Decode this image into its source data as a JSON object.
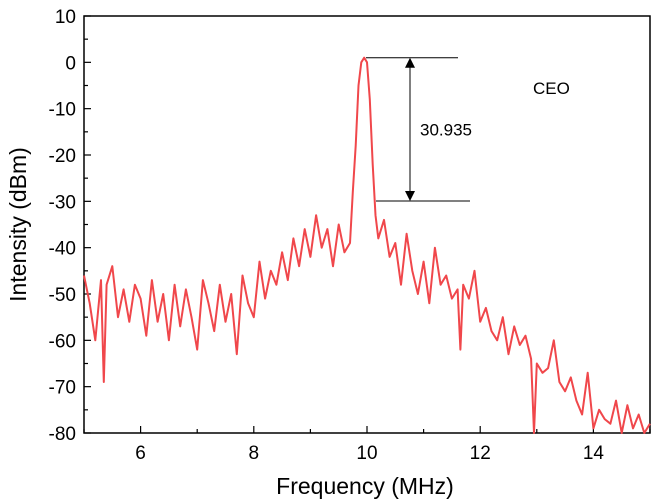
{
  "chart_data": {
    "type": "line",
    "xlabel": "Frequency (MHz)",
    "ylabel": "Intensity (dBm)",
    "xlim": [
      5,
      15
    ],
    "ylim": [
      -80,
      10
    ],
    "xticks": [
      6,
      8,
      10,
      12,
      14
    ],
    "yticks": [
      10,
      0,
      -10,
      -20,
      -30,
      -40,
      -50,
      -60,
      -70,
      -80
    ],
    "grid": false,
    "series": [
      {
        "color": "#f0474b",
        "x": [
          5.0,
          5.1,
          5.2,
          5.3,
          5.35,
          5.4,
          5.5,
          5.6,
          5.7,
          5.8,
          5.9,
          6.0,
          6.1,
          6.2,
          6.3,
          6.4,
          6.5,
          6.6,
          6.7,
          6.8,
          6.9,
          7.0,
          7.1,
          7.2,
          7.3,
          7.4,
          7.5,
          7.6,
          7.7,
          7.8,
          7.9,
          8.0,
          8.1,
          8.2,
          8.3,
          8.4,
          8.5,
          8.6,
          8.7,
          8.8,
          8.9,
          9.0,
          9.1,
          9.2,
          9.3,
          9.4,
          9.5,
          9.6,
          9.7,
          9.75,
          9.8,
          9.85,
          9.9,
          9.95,
          10.0,
          10.05,
          10.1,
          10.15,
          10.2,
          10.3,
          10.4,
          10.5,
          10.6,
          10.7,
          10.8,
          10.9,
          11.0,
          11.1,
          11.2,
          11.3,
          11.4,
          11.5,
          11.6,
          11.65,
          11.7,
          11.8,
          11.9,
          12.0,
          12.1,
          12.2,
          12.3,
          12.4,
          12.5,
          12.6,
          12.7,
          12.8,
          12.9,
          12.95,
          13.0,
          13.1,
          13.2,
          13.3,
          13.4,
          13.5,
          13.6,
          13.7,
          13.8,
          13.9,
          14.0,
          14.1,
          14.2,
          14.3,
          14.4,
          14.5,
          14.6,
          14.7,
          14.8,
          14.9,
          15.0
        ],
        "y": [
          -46,
          -52,
          -60,
          -47,
          -69,
          -48,
          -44,
          -55,
          -49,
          -56,
          -48,
          -51,
          -59,
          -47,
          -56,
          -50,
          -60,
          -48,
          -57,
          -49,
          -55,
          -62,
          -47,
          -52,
          -58,
          -48,
          -56,
          -50,
          -63,
          -46,
          -52,
          -55,
          -43,
          -51,
          -45,
          -48,
          -41,
          -47,
          -38,
          -44,
          -36,
          -42,
          -33,
          -40,
          -36,
          -44,
          -35,
          -41,
          -39,
          -28,
          -18,
          -5,
          0,
          1,
          0,
          -8,
          -22,
          -33,
          -38,
          -34,
          -42,
          -39,
          -48,
          -37,
          -45,
          -50,
          -43,
          -52,
          -40,
          -48,
          -46,
          -51,
          -49,
          -62,
          -48,
          -51,
          -45,
          -56,
          -53,
          -58,
          -60,
          -55,
          -63,
          -57,
          -61,
          -59,
          -64,
          -80,
          -65,
          -67,
          -66,
          -60,
          -69,
          -71,
          -68,
          -73,
          -76,
          -67,
          -79,
          -75,
          -77,
          -78,
          -73,
          -80,
          -74,
          -79,
          -76,
          -80,
          -78
        ]
      }
    ],
    "annotation": {
      "value_label": "30.935",
      "peak_y": 1,
      "base_y": -29.935,
      "corner_label": "CEO"
    }
  }
}
